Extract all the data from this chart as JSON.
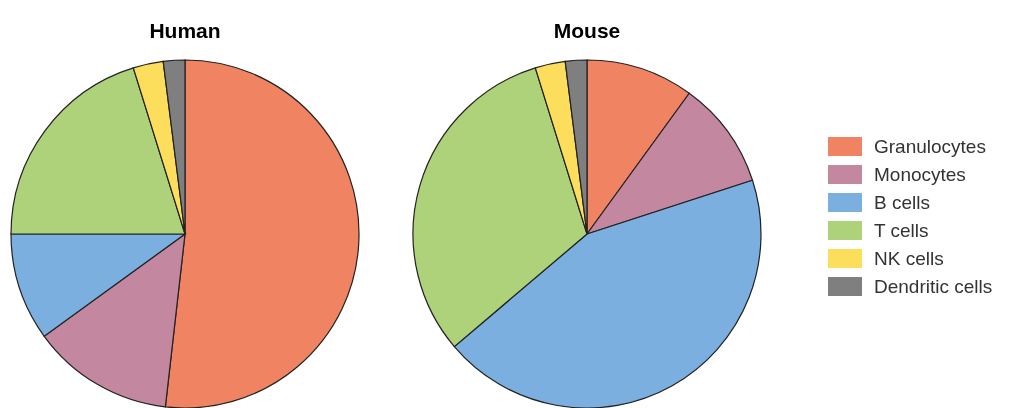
{
  "chart_data": [
    {
      "type": "pie",
      "title": "Human",
      "categories": [
        null,
        null,
        null,
        null,
        null,
        null
      ],
      "values": [
        51.8,
        13.2,
        10,
        20.2,
        2.8,
        2
      ],
      "colors": [
        "#f08462",
        "#c3889f",
        "#7aafe0",
        "#aed27a",
        "#fddd5c",
        "#7f7f80"
      ]
    },
    {
      "type": "pie",
      "title": "Mouse",
      "categories": [
        "Granulocytes",
        "Monocytes",
        "B cells",
        "T cells",
        "NK cells",
        "Dendritic cells"
      ],
      "values": [
        10,
        10,
        43.8,
        31.4,
        2.8,
        2
      ],
      "colors": [
        "#f08462",
        "#c3889f",
        "#7aafe0",
        "#aed27a",
        "#fddd5c",
        "#7f7f80"
      ],
      "legend": "right"
    }
  ]
}
